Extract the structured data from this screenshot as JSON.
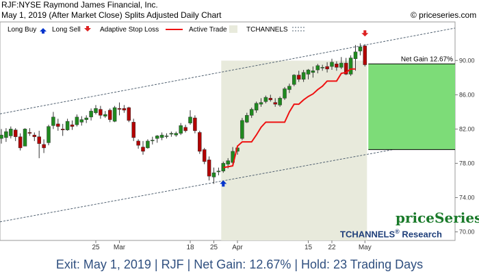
{
  "header": {
    "title_line": "RJF:NYSE Raymond James Financial, Inc.",
    "subtitle_line": "May 1, 2019 (After Market Close)  Splits Adjusted Daily Chart",
    "copyright": "© priceseries.com"
  },
  "legend": {
    "long_buy": "Long Buy",
    "long_sell": "Long Sell",
    "stop_loss": "Adaptive Stop Loss",
    "active_trade": "Active Trade",
    "tchannels": "TCHANNELS"
  },
  "annotation": {
    "net_gain_label": "Net Gain 12.67%"
  },
  "branding": {
    "priceseries": "priceSeries",
    "tchannels_research": "TCHANNELS",
    "registered": "®",
    "research": " Research"
  },
  "footer": {
    "summary": "Exit: May 1, 2019 | RJF | Net Gain: 12.67% | Hold: 23 Trading Days"
  },
  "colors": {
    "up_candle": "#1f8a1f",
    "down_candle": "#b30000",
    "stop_line": "#ee1111",
    "active_trade_bg": "#e8eadc",
    "gain_box": "#7ddc78",
    "channel_line": "#506070",
    "buy_arrow": "#0033cc",
    "sell_arrow": "#dd2222"
  },
  "chart_data": {
    "type": "candlestick",
    "ylim": [
      69,
      94.5
    ],
    "y_ticks": [
      70,
      74,
      78,
      82,
      86,
      90
    ],
    "y_tick_labels": [
      "70.00",
      "74.00",
      "78.00",
      "82.00",
      "86.00",
      "90.00"
    ],
    "x_tick_labels": [
      {
        "label": "25",
        "index": 20
      },
      {
        "label": "Mar",
        "index": 25
      },
      {
        "label": "18",
        "index": 40
      },
      {
        "label": "25",
        "index": 45
      },
      {
        "label": "Apr",
        "index": 50
      },
      {
        "label": "15",
        "index": 65
      },
      {
        "label": "22",
        "index": 70
      },
      {
        "label": "May",
        "index": 77
      }
    ],
    "candles": [
      {
        "o": 80.9,
        "h": 82.0,
        "l": 80.3,
        "c": 81.3
      },
      {
        "o": 81.0,
        "h": 82.1,
        "l": 80.5,
        "c": 81.7
      },
      {
        "o": 81.2,
        "h": 82.3,
        "l": 80.9,
        "c": 82.0
      },
      {
        "o": 81.9,
        "h": 82.1,
        "l": 80.6,
        "c": 81.1
      },
      {
        "o": 81.1,
        "h": 81.5,
        "l": 79.5,
        "c": 79.8
      },
      {
        "o": 80.0,
        "h": 82.1,
        "l": 80.0,
        "c": 82.0
      },
      {
        "o": 81.6,
        "h": 82.1,
        "l": 81.2,
        "c": 81.5
      },
      {
        "o": 81.3,
        "h": 81.6,
        "l": 80.6,
        "c": 81.1
      },
      {
        "o": 81.1,
        "h": 81.8,
        "l": 78.6,
        "c": 80.3
      },
      {
        "o": 80.2,
        "h": 80.8,
        "l": 79.2,
        "c": 79.8
      },
      {
        "o": 80.4,
        "h": 82.5,
        "l": 80.1,
        "c": 82.3
      },
      {
        "o": 82.4,
        "h": 84.0,
        "l": 82.0,
        "c": 83.4
      },
      {
        "o": 82.6,
        "h": 83.2,
        "l": 81.8,
        "c": 82.3
      },
      {
        "o": 82.0,
        "h": 82.6,
        "l": 81.2,
        "c": 81.9
      },
      {
        "o": 81.9,
        "h": 83.2,
        "l": 81.8,
        "c": 82.9
      },
      {
        "o": 82.5,
        "h": 83.0,
        "l": 81.9,
        "c": 82.3
      },
      {
        "o": 82.5,
        "h": 83.7,
        "l": 82.3,
        "c": 83.4
      },
      {
        "o": 82.8,
        "h": 83.5,
        "l": 82.4,
        "c": 83.1
      },
      {
        "o": 83.1,
        "h": 83.6,
        "l": 82.7,
        "c": 83.3
      },
      {
        "o": 83.4,
        "h": 84.4,
        "l": 83.0,
        "c": 84.1
      },
      {
        "o": 83.9,
        "h": 84.8,
        "l": 83.7,
        "c": 84.4
      },
      {
        "o": 84.3,
        "h": 84.7,
        "l": 83.2,
        "c": 83.6
      },
      {
        "o": 83.5,
        "h": 84.1,
        "l": 83.3,
        "c": 83.7
      },
      {
        "o": 84.2,
        "h": 84.4,
        "l": 82.8,
        "c": 83.1
      },
      {
        "o": 82.9,
        "h": 84.7,
        "l": 82.8,
        "c": 84.5
      },
      {
        "o": 84.4,
        "h": 85.1,
        "l": 83.6,
        "c": 84.3
      },
      {
        "o": 84.4,
        "h": 84.8,
        "l": 83.9,
        "c": 84.2
      },
      {
        "o": 84.5,
        "h": 84.6,
        "l": 82.8,
        "c": 83.0
      },
      {
        "o": 82.8,
        "h": 83.2,
        "l": 80.6,
        "c": 81.0
      },
      {
        "o": 80.6,
        "h": 80.8,
        "l": 79.7,
        "c": 80.1
      },
      {
        "o": 79.9,
        "h": 80.6,
        "l": 79.0,
        "c": 79.4
      },
      {
        "o": 79.8,
        "h": 80.8,
        "l": 79.7,
        "c": 80.6
      },
      {
        "o": 80.7,
        "h": 81.1,
        "l": 80.2,
        "c": 80.7
      },
      {
        "o": 80.9,
        "h": 81.3,
        "l": 80.4,
        "c": 81.2
      },
      {
        "o": 81.0,
        "h": 81.6,
        "l": 80.7,
        "c": 81.3
      },
      {
        "o": 81.2,
        "h": 81.5,
        "l": 80.9,
        "c": 81.2
      },
      {
        "o": 81.4,
        "h": 81.7,
        "l": 81.1,
        "c": 81.5
      },
      {
        "o": 81.3,
        "h": 81.7,
        "l": 81.1,
        "c": 81.5
      },
      {
        "o": 81.5,
        "h": 82.7,
        "l": 81.3,
        "c": 82.4
      },
      {
        "o": 82.2,
        "h": 82.5,
        "l": 81.6,
        "c": 81.8
      },
      {
        "o": 82.7,
        "h": 84.2,
        "l": 82.5,
        "c": 83.4
      },
      {
        "o": 83.3,
        "h": 83.6,
        "l": 81.5,
        "c": 81.8
      },
      {
        "o": 81.6,
        "h": 81.8,
        "l": 79.1,
        "c": 79.4
      },
      {
        "o": 79.6,
        "h": 79.8,
        "l": 77.9,
        "c": 78.2
      },
      {
        "o": 78.4,
        "h": 78.8,
        "l": 76.0,
        "c": 76.5
      },
      {
        "o": 76.4,
        "h": 77.5,
        "l": 75.6,
        "c": 76.9
      },
      {
        "o": 77.0,
        "h": 77.5,
        "l": 76.6,
        "c": 77.1
      },
      {
        "o": 77.1,
        "h": 78.2,
        "l": 76.9,
        "c": 78.0
      },
      {
        "o": 77.9,
        "h": 78.6,
        "l": 77.4,
        "c": 78.3
      },
      {
        "o": 78.1,
        "h": 79.9,
        "l": 77.8,
        "c": 79.4
      },
      {
        "o": 79.4,
        "h": 80.1,
        "l": 79.0,
        "c": 79.8
      },
      {
        "o": 80.9,
        "h": 83.3,
        "l": 80.7,
        "c": 83.0
      },
      {
        "o": 82.8,
        "h": 83.9,
        "l": 82.7,
        "c": 83.6
      },
      {
        "o": 83.6,
        "h": 84.5,
        "l": 83.3,
        "c": 84.3
      },
      {
        "o": 84.2,
        "h": 85.2,
        "l": 83.9,
        "c": 85.0
      },
      {
        "o": 84.9,
        "h": 85.6,
        "l": 84.6,
        "c": 85.1
      },
      {
        "o": 85.2,
        "h": 85.9,
        "l": 85.0,
        "c": 85.7
      },
      {
        "o": 85.6,
        "h": 86.0,
        "l": 85.2,
        "c": 85.4
      },
      {
        "o": 85.1,
        "h": 85.6,
        "l": 84.6,
        "c": 84.9
      },
      {
        "o": 84.8,
        "h": 85.8,
        "l": 84.6,
        "c": 85.6
      },
      {
        "o": 85.6,
        "h": 86.9,
        "l": 85.4,
        "c": 86.7
      },
      {
        "o": 86.6,
        "h": 87.3,
        "l": 86.2,
        "c": 87.0
      },
      {
        "o": 87.2,
        "h": 88.4,
        "l": 87.0,
        "c": 88.3
      },
      {
        "o": 88.3,
        "h": 88.8,
        "l": 87.5,
        "c": 87.8
      },
      {
        "o": 87.8,
        "h": 88.9,
        "l": 87.5,
        "c": 88.6
      },
      {
        "o": 88.4,
        "h": 89.0,
        "l": 87.8,
        "c": 88.9
      },
      {
        "o": 88.6,
        "h": 89.3,
        "l": 88.0,
        "c": 88.8
      },
      {
        "o": 88.9,
        "h": 89.6,
        "l": 88.5,
        "c": 89.4
      },
      {
        "o": 89.2,
        "h": 89.5,
        "l": 88.8,
        "c": 89.2
      },
      {
        "o": 89.3,
        "h": 89.8,
        "l": 88.6,
        "c": 89.0
      },
      {
        "o": 89.3,
        "h": 90.2,
        "l": 88.9,
        "c": 89.8
      },
      {
        "o": 89.6,
        "h": 89.9,
        "l": 88.8,
        "c": 89.2
      },
      {
        "o": 89.2,
        "h": 90.4,
        "l": 89.0,
        "c": 89.7
      },
      {
        "o": 89.7,
        "h": 90.3,
        "l": 88.3,
        "c": 88.4
      },
      {
        "o": 88.4,
        "h": 90.6,
        "l": 88.2,
        "c": 90.3
      },
      {
        "o": 90.2,
        "h": 91.8,
        "l": 88.8,
        "c": 91.0
      },
      {
        "o": 91.1,
        "h": 92.0,
        "l": 90.6,
        "c": 91.6
      },
      {
        "o": 91.7,
        "h": 91.9,
        "l": 89.3,
        "c": 89.5
      }
    ],
    "stop_loss": {
      "start_index": 47,
      "values": [
        77.5,
        77.6,
        77.7,
        80.0,
        80.5,
        80.5,
        80.5,
        81.3,
        82.2,
        82.8,
        82.8,
        82.8,
        82.8,
        82.8,
        84.0,
        84.9,
        84.9,
        85.4,
        85.8,
        86.1,
        86.6,
        87.0,
        87.6,
        87.6,
        87.6,
        88.5,
        88.6,
        89.0,
        89.0
      ]
    },
    "active_trade": {
      "start_index": 47,
      "end_index": 77
    },
    "channel_upper": {
      "start_index": 0,
      "start_value": 83.8,
      "end_index": 77,
      "end_value": 91.8
    },
    "channel_lower": {
      "start_index": 0,
      "start_value": 71.2,
      "end_index": 79,
      "end_value": 79.2
    },
    "long_buy": {
      "index": 47,
      "value": 76.0
    },
    "long_sell": {
      "index": 77,
      "value": 92.8
    },
    "gain_box": {
      "entry": 79.6,
      "exit": 89.6
    }
  }
}
